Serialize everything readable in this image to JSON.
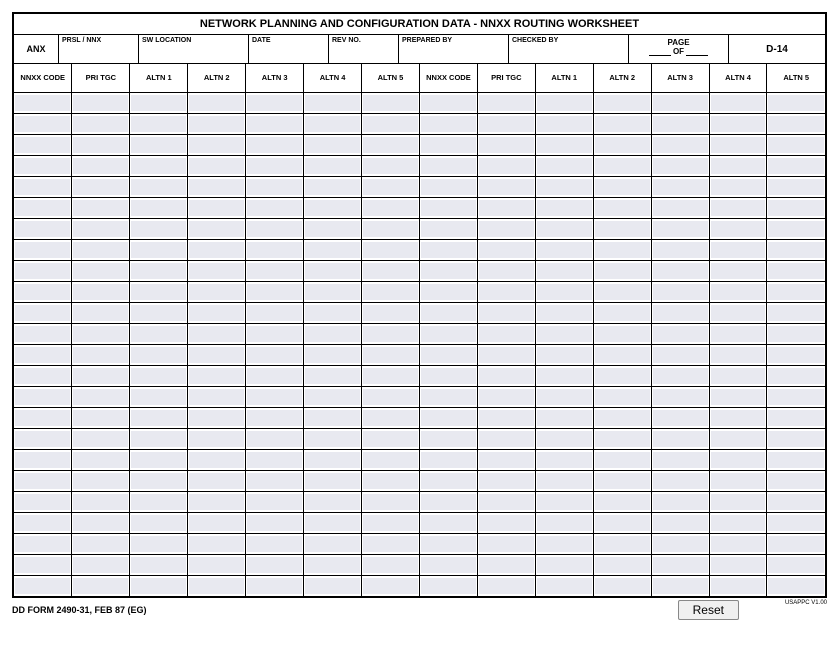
{
  "title": "NETWORK PLANNING AND CONFIGURATION DATA - NNXX ROUTING WORKSHEET",
  "header": {
    "anx": "ANX",
    "prsl": "PRSL / NNX",
    "swloc": "SW LOCATION",
    "date": "DATE",
    "revno": "REV NO.",
    "prepby": "PREPARED BY",
    "chkby": "CHECKED BY",
    "page": "PAGE",
    "of": "OF",
    "d14": "D-14"
  },
  "columns": [
    "NNXX CODE",
    "PRI TGC",
    "ALTN 1",
    "ALTN 2",
    "ALTN 3",
    "ALTN 4",
    "ALTN 5",
    "NNXX CODE",
    "PRI TGC",
    "ALTN 1",
    "ALTN 2",
    "ALTN 3",
    "ALTN 4",
    "ALTN 5"
  ],
  "row_count": 24,
  "stripe_color": "#e8e9f0",
  "footer": {
    "form_id": "DD FORM 2490-31, FEB 87 (EG)",
    "usappc": "USAPPC V1.00",
    "reset": "Reset"
  }
}
